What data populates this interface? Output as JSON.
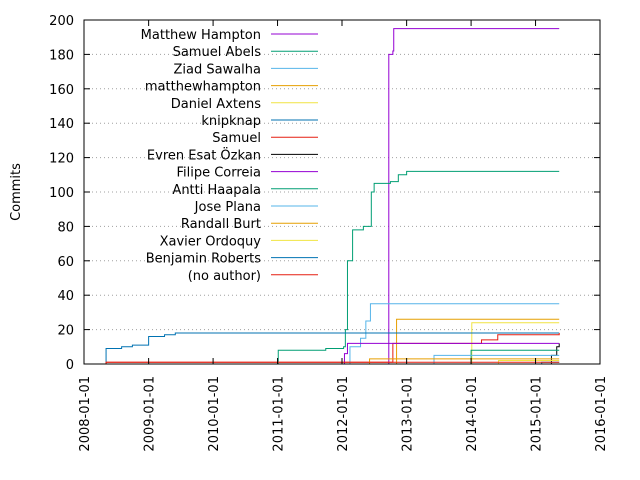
{
  "chart_data": {
    "type": "line",
    "title": "",
    "xlabel": "",
    "ylabel": "Commits",
    "xlim": [
      "2008-01-01",
      "2016-01-01"
    ],
    "ylim": [
      0,
      200
    ],
    "yticks": [
      0,
      20,
      40,
      60,
      80,
      100,
      120,
      140,
      160,
      180,
      200
    ],
    "xticks": [
      "2008-01-01",
      "2009-01-01",
      "2010-01-01",
      "2011-01-01",
      "2012-01-01",
      "2013-01-01",
      "2014-01-01",
      "2015-01-01",
      "2016-01-01"
    ],
    "grid": "horizontal-dotted",
    "legend_position": "top-left",
    "series": [
      {
        "name": "Matthew Hampton",
        "color": "#9400d3",
        "points": [
          [
            "2012-01-01",
            0
          ],
          [
            "2012-09-20",
            0
          ],
          [
            "2012-09-22",
            180
          ],
          [
            "2012-10-15",
            182
          ],
          [
            "2012-10-20",
            195
          ],
          [
            "2015-05-15",
            195
          ]
        ]
      },
      {
        "name": "Samuel Abels",
        "color": "#009e73",
        "points": [
          [
            "2011-01-01",
            0
          ],
          [
            "2011-01-05",
            8
          ],
          [
            "2011-10-01",
            9
          ],
          [
            "2012-01-10",
            10
          ],
          [
            "2012-01-20",
            20
          ],
          [
            "2012-02-01",
            60
          ],
          [
            "2012-03-01",
            78
          ],
          [
            "2012-05-01",
            80
          ],
          [
            "2012-06-15",
            100
          ],
          [
            "2012-07-01",
            105
          ],
          [
            "2012-10-01",
            106
          ],
          [
            "2012-11-15",
            110
          ],
          [
            "2013-01-01",
            112
          ],
          [
            "2015-05-15",
            112
          ]
        ]
      },
      {
        "name": "Ziad Sawalha",
        "color": "#56b4e9",
        "points": [
          [
            "2012-02-01",
            0
          ],
          [
            "2012-02-15",
            10
          ],
          [
            "2012-04-15",
            15
          ],
          [
            "2012-05-15",
            25
          ],
          [
            "2012-06-10",
            35
          ],
          [
            "2015-05-15",
            35
          ]
        ]
      },
      {
        "name": "matthewhampton",
        "color": "#e69f00",
        "points": [
          [
            "2012-11-01",
            0
          ],
          [
            "2012-11-05",
            26
          ],
          [
            "2015-05-15",
            26
          ]
        ]
      },
      {
        "name": "Daniel Axtens",
        "color": "#f0e442",
        "points": [
          [
            "2014-01-01",
            0
          ],
          [
            "2014-01-05",
            24
          ],
          [
            "2015-05-15",
            24
          ]
        ]
      },
      {
        "name": "knipknap",
        "color": "#0072b2",
        "points": [
          [
            "2008-05-01",
            0
          ],
          [
            "2008-05-05",
            9
          ],
          [
            "2008-08-01",
            10
          ],
          [
            "2008-10-01",
            11
          ],
          [
            "2009-01-01",
            16
          ],
          [
            "2009-04-01",
            17
          ],
          [
            "2009-06-01",
            18
          ],
          [
            "2015-05-15",
            18
          ]
        ]
      },
      {
        "name": "Samuel",
        "color": "#e51e10",
        "points": [
          [
            "2008-05-01",
            0
          ],
          [
            "2008-05-05",
            1
          ],
          [
            "2012-10-01",
            1
          ],
          [
            "2012-10-15",
            12
          ],
          [
            "2014-03-01",
            14
          ],
          [
            "2014-06-01",
            17
          ],
          [
            "2015-05-15",
            18
          ]
        ]
      },
      {
        "name": "Evren Esat Özkan",
        "color": "#000000",
        "points": [
          [
            "2015-02-01",
            0
          ],
          [
            "2015-04-01",
            5
          ],
          [
            "2015-05-01",
            10
          ],
          [
            "2015-05-15",
            12
          ]
        ]
      },
      {
        "name": "Filipe Correia",
        "color": "#9400d3",
        "points": [
          [
            "2012-01-01",
            0
          ],
          [
            "2012-01-15",
            6
          ],
          [
            "2012-02-01",
            12
          ],
          [
            "2015-05-15",
            12
          ]
        ]
      },
      {
        "name": "Antti Haapala",
        "color": "#009e73",
        "points": [
          [
            "2013-01-01",
            0
          ],
          [
            "2014-01-01",
            8
          ],
          [
            "2015-05-15",
            8
          ]
        ]
      },
      {
        "name": "Jose Plana",
        "color": "#56b4e9",
        "points": [
          [
            "2013-06-01",
            0
          ],
          [
            "2013-06-05",
            5
          ],
          [
            "2015-05-15",
            5
          ]
        ]
      },
      {
        "name": "Randall Burt",
        "color": "#e69f00",
        "points": [
          [
            "2012-06-01",
            0
          ],
          [
            "2012-06-05",
            3
          ],
          [
            "2015-05-15",
            3
          ]
        ]
      },
      {
        "name": "Xavier Ordoquy",
        "color": "#f0e442",
        "points": [
          [
            "2014-06-01",
            0
          ],
          [
            "2014-06-05",
            2
          ],
          [
            "2015-05-15",
            2
          ]
        ]
      },
      {
        "name": "Benjamin Roberts",
        "color": "#0072b2",
        "points": [
          [
            "2015-02-01",
            0
          ],
          [
            "2015-02-05",
            1
          ],
          [
            "2015-05-15",
            1
          ]
        ]
      },
      {
        "name": "(no author)",
        "color": "#e51e10",
        "points": [
          [
            "2008-05-01",
            0
          ],
          [
            "2008-05-05",
            1
          ],
          [
            "2015-05-15",
            1
          ]
        ]
      }
    ]
  }
}
